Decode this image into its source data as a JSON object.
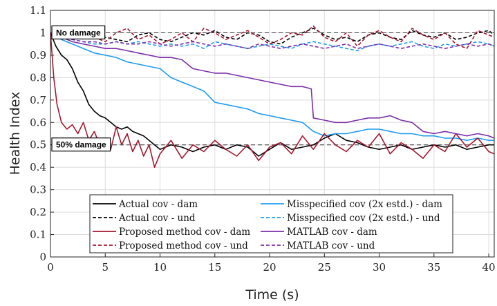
{
  "chart_data": {
    "type": "line",
    "xlabel": "Time (s)",
    "ylabel": "Health Index",
    "xlim": [
      0,
      40.5
    ],
    "ylim": [
      0,
      1.1
    ],
    "xticks": [
      "0",
      "5",
      "10",
      "15",
      "20",
      "25",
      "30",
      "35",
      "40"
    ],
    "yticks": [
      "0",
      "0.1",
      "0.2",
      "0.3",
      "0.4",
      "0.5",
      "0.6",
      "0.7",
      "0.8",
      "0.9",
      "1",
      "1.1"
    ],
    "grid": true,
    "legend_position": "bottom-center",
    "reference_lines": [
      {
        "label": "No damage",
        "y": 1.0
      },
      {
        "label": "50% damage",
        "y": 0.5
      }
    ],
    "series": [
      {
        "name": "Actual cov - dam",
        "color": "#000000",
        "dash": "solid",
        "x": [
          0,
          0.5,
          1,
          1.5,
          2,
          2.5,
          3,
          3.5,
          4,
          4.5,
          5,
          5.5,
          6,
          6.5,
          7,
          7.5,
          8,
          8.5,
          9,
          9.5,
          10,
          11,
          12,
          13,
          14,
          15,
          16,
          17,
          18,
          19,
          20,
          21,
          22,
          23,
          24,
          25,
          26,
          27,
          28,
          29,
          30,
          31,
          32,
          33,
          34,
          35,
          36,
          37,
          38,
          39,
          40,
          40.5
        ],
        "y": [
          1.0,
          0.94,
          0.9,
          0.88,
          0.84,
          0.78,
          0.74,
          0.68,
          0.65,
          0.63,
          0.62,
          0.6,
          0.58,
          0.57,
          0.58,
          0.56,
          0.55,
          0.54,
          0.52,
          0.5,
          0.48,
          0.5,
          0.49,
          0.47,
          0.49,
          0.5,
          0.48,
          0.5,
          0.49,
          0.45,
          0.48,
          0.51,
          0.48,
          0.49,
          0.5,
          0.53,
          0.55,
          0.52,
          0.51,
          0.49,
          0.48,
          0.49,
          0.5,
          0.48,
          0.49,
          0.5,
          0.49,
          0.5,
          0.48,
          0.49,
          0.5,
          0.5
        ]
      },
      {
        "name": "Actual cov - und",
        "color": "#000000",
        "dash": "dashed",
        "x": [
          0,
          1,
          2,
          3,
          4,
          5,
          6,
          7,
          8,
          9,
          10,
          11,
          12,
          13,
          14,
          15,
          16,
          17,
          18,
          19,
          20,
          21,
          22,
          23,
          24,
          25,
          26,
          27,
          28,
          29,
          30,
          31,
          32,
          33,
          34,
          35,
          36,
          37,
          38,
          39,
          40,
          40.5
        ],
        "y": [
          1.0,
          0.98,
          0.97,
          0.99,
          1.0,
          0.98,
          0.97,
          0.96,
          0.99,
          1.0,
          0.97,
          0.96,
          0.98,
          1.0,
          0.99,
          1.01,
          0.98,
          0.97,
          1.0,
          0.99,
          0.96,
          0.95,
          0.98,
          1.0,
          1.02,
          0.99,
          0.97,
          0.98,
          0.96,
          0.99,
          1.0,
          0.98,
          0.97,
          1.01,
          0.99,
          0.98,
          1.0,
          0.97,
          0.98,
          1.0,
          1.01,
          0.99
        ]
      },
      {
        "name": "Misspecified cov (2x estd.) - dam",
        "color": "#1f9bf0",
        "dash": "solid",
        "x": [
          0,
          1,
          2,
          3,
          4,
          5,
          6,
          7,
          8,
          9,
          10,
          11,
          12,
          13,
          14,
          15,
          16,
          17,
          18,
          19,
          20,
          21,
          22,
          23,
          24,
          25,
          26,
          27,
          28,
          29,
          30,
          31,
          32,
          33,
          34,
          35,
          36,
          37,
          38,
          39,
          40,
          40.5
        ],
        "y": [
          1.0,
          0.97,
          0.95,
          0.93,
          0.91,
          0.9,
          0.89,
          0.87,
          0.86,
          0.85,
          0.84,
          0.8,
          0.78,
          0.76,
          0.74,
          0.69,
          0.68,
          0.67,
          0.66,
          0.64,
          0.63,
          0.62,
          0.61,
          0.6,
          0.56,
          0.54,
          0.55,
          0.55,
          0.56,
          0.57,
          0.57,
          0.56,
          0.55,
          0.55,
          0.54,
          0.54,
          0.53,
          0.53,
          0.52,
          0.53,
          0.52,
          0.52
        ]
      },
      {
        "name": "Misspecified cov (2x estd.) - und",
        "color": "#1f9bf0",
        "dash": "dashed",
        "x": [
          0,
          1,
          2,
          3,
          4,
          5,
          6,
          7,
          8,
          9,
          10,
          11,
          12,
          13,
          14,
          15,
          16,
          17,
          18,
          19,
          20,
          21,
          22,
          23,
          24,
          25,
          26,
          27,
          28,
          29,
          30,
          31,
          32,
          33,
          34,
          35,
          36,
          37,
          38,
          39,
          40,
          40.5
        ],
        "y": [
          1.0,
          0.98,
          0.97,
          0.96,
          0.95,
          0.95,
          0.96,
          0.95,
          0.96,
          0.95,
          0.94,
          0.95,
          0.94,
          0.95,
          0.93,
          0.96,
          0.95,
          0.94,
          0.93,
          0.94,
          0.95,
          0.94,
          0.93,
          0.95,
          0.96,
          0.95,
          0.94,
          0.93,
          0.92,
          0.94,
          0.95,
          0.94,
          0.95,
          0.96,
          0.94,
          0.93,
          0.95,
          0.94,
          0.95,
          0.96,
          0.95,
          0.94
        ]
      },
      {
        "name": "Proposed method cov - dam",
        "color": "#a3162e",
        "dash": "solid",
        "x": [
          0,
          0.3,
          0.6,
          1,
          1.5,
          2,
          2.5,
          3,
          3.5,
          4,
          4.5,
          5,
          5.5,
          6,
          6.5,
          7,
          7.5,
          8,
          8.5,
          9,
          9.5,
          10,
          11,
          12,
          13,
          14,
          15,
          16,
          17,
          18,
          19,
          20,
          21,
          22,
          23,
          24,
          25,
          26,
          27,
          28,
          29,
          30,
          31,
          32,
          33,
          34,
          35,
          36,
          37,
          38,
          39,
          40,
          40.5
        ],
        "y": [
          1.0,
          0.8,
          0.68,
          0.6,
          0.57,
          0.59,
          0.55,
          0.6,
          0.52,
          0.56,
          0.5,
          0.53,
          0.48,
          0.58,
          0.5,
          0.55,
          0.47,
          0.52,
          0.45,
          0.5,
          0.4,
          0.46,
          0.52,
          0.44,
          0.5,
          0.47,
          0.52,
          0.48,
          0.45,
          0.5,
          0.43,
          0.49,
          0.51,
          0.46,
          0.54,
          0.48,
          0.55,
          0.5,
          0.47,
          0.52,
          0.49,
          0.55,
          0.46,
          0.51,
          0.48,
          0.44,
          0.5,
          0.47,
          0.55,
          0.49,
          0.53,
          0.47,
          0.46
        ]
      },
      {
        "name": "Proposed method cov - und",
        "color": "#a3162e",
        "dash": "dashed",
        "x": [
          0,
          1,
          2,
          3,
          4,
          5,
          6,
          7,
          8,
          9,
          10,
          11,
          12,
          13,
          14,
          15,
          16,
          17,
          18,
          19,
          20,
          21,
          22,
          23,
          24,
          25,
          26,
          27,
          28,
          29,
          30,
          31,
          32,
          33,
          34,
          35,
          36,
          37,
          38,
          39,
          40,
          40.5
        ],
        "y": [
          1.0,
          0.99,
          0.97,
          1.01,
          0.98,
          0.96,
          1.0,
          1.02,
          0.97,
          0.99,
          0.95,
          0.97,
          1.0,
          0.96,
          1.02,
          1.0,
          0.97,
          0.99,
          1.01,
          0.98,
          0.95,
          0.97,
          1.0,
          0.99,
          1.03,
          0.98,
          0.96,
          1.0,
          0.94,
          0.99,
          1.01,
          0.98,
          0.96,
          1.02,
          0.99,
          0.97,
          1.0,
          0.95,
          0.93,
          1.01,
          0.99,
          0.98
        ]
      },
      {
        "name": "MATLAB cov - dam",
        "color": "#7b2fa8",
        "dash": "solid",
        "x": [
          0,
          1,
          2,
          3,
          4,
          5,
          6,
          7,
          8,
          9,
          10,
          11,
          12,
          13,
          14,
          15,
          16,
          17,
          18,
          19,
          20,
          21,
          22,
          23,
          23.8,
          24,
          25,
          26,
          27,
          28,
          29,
          30,
          31,
          32,
          33,
          34,
          35,
          36,
          37,
          38,
          39,
          40,
          40.5
        ],
        "y": [
          1.0,
          0.98,
          0.96,
          0.95,
          0.94,
          0.93,
          0.93,
          0.92,
          0.91,
          0.9,
          0.89,
          0.89,
          0.88,
          0.84,
          0.83,
          0.82,
          0.82,
          0.81,
          0.8,
          0.79,
          0.78,
          0.77,
          0.76,
          0.76,
          0.75,
          0.62,
          0.61,
          0.6,
          0.6,
          0.61,
          0.62,
          0.62,
          0.63,
          0.61,
          0.6,
          0.56,
          0.55,
          0.56,
          0.55,
          0.54,
          0.55,
          0.54,
          0.53
        ]
      },
      {
        "name": "MATLAB cov - und",
        "color": "#7b2fa8",
        "dash": "dashed",
        "x": [
          0,
          1,
          2,
          3,
          4,
          5,
          6,
          7,
          8,
          9,
          10,
          11,
          12,
          13,
          14,
          15,
          16,
          17,
          18,
          19,
          20,
          21,
          22,
          23,
          24,
          25,
          26,
          27,
          28,
          29,
          30,
          31,
          32,
          33,
          34,
          35,
          36,
          37,
          38,
          39,
          40,
          40.5
        ],
        "y": [
          1.0,
          0.98,
          0.97,
          0.96,
          0.96,
          0.95,
          0.96,
          0.95,
          0.95,
          0.96,
          0.95,
          0.94,
          0.95,
          0.96,
          0.95,
          0.94,
          0.95,
          0.94,
          0.93,
          0.95,
          0.94,
          0.93,
          0.94,
          0.95,
          0.94,
          0.93,
          0.94,
          0.95,
          0.93,
          0.94,
          0.95,
          0.94,
          0.93,
          0.94,
          0.95,
          0.94,
          0.93,
          0.94,
          0.95,
          0.94,
          0.95,
          0.94
        ]
      }
    ]
  }
}
